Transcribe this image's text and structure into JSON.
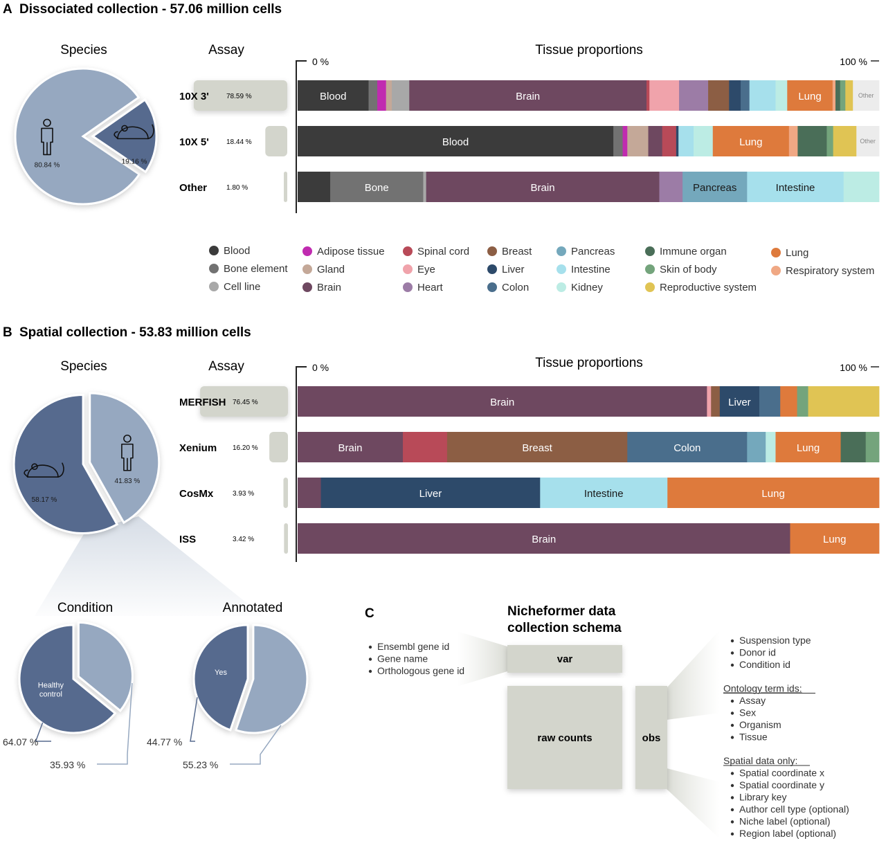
{
  "panel_a": {
    "letter": "A",
    "title": "Dissociated collection - 57.06 million cells",
    "species_header": "Species",
    "assay_header": "Assay",
    "tissue_header": "Tissue proportions",
    "axis_start": "0 %",
    "axis_end": "100 %"
  },
  "panel_b": {
    "letter": "B",
    "title": "Spatial collection - 53.83 million cells",
    "species_header": "Species",
    "assay_header": "Assay",
    "tissue_header": "Tissue proportions",
    "axis_start": "0 %",
    "axis_end": "100 %",
    "condition_header": "Condition",
    "annotated_header": "Annotated"
  },
  "colors": {
    "Blood": "#3b3b3b",
    "Bone element": "#727272",
    "Cell line": "#a8a8a8",
    "Adipose tissue": "#c02bb0",
    "Gland": "#c4a898",
    "Brain": "#6e4860",
    "Spinal cord": "#b84a58",
    "Eye": "#f0a3ab",
    "Heart": "#9c7ca6",
    "Breast": "#8c5e44",
    "Liver": "#2d4a6a",
    "Colon": "#4a6e8c",
    "Pancreas": "#74a8bc",
    "Intestine": "#a6e0ec",
    "Kidney": "#bcece4",
    "Immune organ": "#4a6e58",
    "Skin of body": "#74a47c",
    "Reproductive system": "#e0c454",
    "Lung": "#de7a3c",
    "Respiratory system": "#f0a884",
    "Other": "#ececec",
    "human": "#96a8c0",
    "mouse": "#566a8e"
  },
  "legend": [
    "Blood",
    "Bone element",
    "Cell line",
    "Adipose tissue",
    "Gland",
    "Brain",
    "Spinal cord",
    "Eye",
    "Heart",
    "Breast",
    "Liver",
    "Colon",
    "Pancreas",
    "Intestine",
    "Kidney",
    "Immune organ",
    "Skin of body",
    "Reproductive system",
    "Lung",
    "Respiratory system"
  ],
  "chart_data": [
    {
      "id": "dissociated-species",
      "type": "pie",
      "title": "Species",
      "slices": [
        {
          "label": "80.84 %",
          "value": 80.84,
          "icon": "human-icon"
        },
        {
          "label": "19.16 %",
          "value": 19.16,
          "icon": "mouse-icon"
        }
      ]
    },
    {
      "id": "dissociated-tissue",
      "type": "bar",
      "stacked": "100%",
      "title": "Tissue proportions",
      "rows": [
        {
          "assay": "10X 3'",
          "share": "78.59 %",
          "share_value": 78.59,
          "segments": [
            {
              "tissue": "Blood",
              "value": 12.2,
              "label": "Blood"
            },
            {
              "tissue": "Bone element",
              "value": 1.5
            },
            {
              "tissue": "Adipose tissue",
              "value": 1.5
            },
            {
              "tissue": "Gland",
              "value": 1.0
            },
            {
              "tissue": "Cell line",
              "value": 3.0
            },
            {
              "tissue": "Brain",
              "value": 40.8,
              "label": "Brain"
            },
            {
              "tissue": "Spinal cord",
              "value": 0.5
            },
            {
              "tissue": "Eye",
              "value": 5.1
            },
            {
              "tissue": "Heart",
              "value": 5.0
            },
            {
              "tissue": "Breast",
              "value": 3.6
            },
            {
              "tissue": "Liver",
              "value": 2.0
            },
            {
              "tissue": "Colon",
              "value": 1.5
            },
            {
              "tissue": "Intestine",
              "value": 4.5
            },
            {
              "tissue": "Kidney",
              "value": 2.0
            },
            {
              "tissue": "Lung",
              "value": 7.8,
              "label": "Lung"
            },
            {
              "tissue": "Respiratory system",
              "value": 0.5
            },
            {
              "tissue": "Immune organ",
              "value": 0.8
            },
            {
              "tissue": "Skin of body",
              "value": 0.9
            },
            {
              "tissue": "Reproductive system",
              "value": 1.3
            },
            {
              "tissue": "Other",
              "value": 4.5,
              "label": "Other"
            }
          ]
        },
        {
          "assay": "10X 5'",
          "share": "18.44 %",
          "share_value": 18.44,
          "segments": [
            {
              "tissue": "Blood",
              "value": 54.3,
              "label": "Blood"
            },
            {
              "tissue": "Bone element",
              "value": 1.6
            },
            {
              "tissue": "Adipose tissue",
              "value": 0.8
            },
            {
              "tissue": "Gland",
              "value": 3.6
            },
            {
              "tissue": "Brain",
              "value": 2.4
            },
            {
              "tissue": "Spinal cord",
              "value": 2.4
            },
            {
              "tissue": "Liver",
              "value": 0.4
            },
            {
              "tissue": "Intestine",
              "value": 2.6
            },
            {
              "tissue": "Kidney",
              "value": 3.3
            },
            {
              "tissue": "Lung",
              "value": 13.1,
              "label": "Lung"
            },
            {
              "tissue": "Respiratory system",
              "value": 1.5
            },
            {
              "tissue": "Immune organ",
              "value": 5.0
            },
            {
              "tissue": "Skin of body",
              "value": 1.1
            },
            {
              "tissue": "Reproductive system",
              "value": 4.0
            },
            {
              "tissue": "Other",
              "value": 3.9,
              "label": "Other"
            }
          ]
        },
        {
          "assay": "Other",
          "share": "1.80 %",
          "share_value": 1.8,
          "segments": [
            {
              "tissue": "Blood",
              "value": 5.6
            },
            {
              "tissue": "Bone element",
              "value": 16.0,
              "label": "Bone"
            },
            {
              "tissue": "Cell line",
              "value": 0.5
            },
            {
              "tissue": "Brain",
              "value": 40.1,
              "label": "Brain"
            },
            {
              "tissue": "Heart",
              "value": 4.0
            },
            {
              "tissue": "Pancreas",
              "value": 11.1,
              "label": "Pancreas"
            },
            {
              "tissue": "Intestine",
              "value": 16.6,
              "label": "Intestine"
            },
            {
              "tissue": "Kidney",
              "value": 6.1
            }
          ]
        }
      ]
    },
    {
      "id": "spatial-species",
      "type": "pie",
      "title": "Species",
      "slices": [
        {
          "label": "41.83 %",
          "value": 41.83,
          "icon": "human-icon"
        },
        {
          "label": "58.17 %",
          "value": 58.17,
          "icon": "mouse-icon"
        }
      ]
    },
    {
      "id": "spatial-tissue",
      "type": "bar",
      "stacked": "100%",
      "title": "Tissue proportions",
      "rows": [
        {
          "assay": "MERFISH",
          "share": "76.45 %",
          "share_value": 76.45,
          "segments": [
            {
              "tissue": "Brain",
              "value": 70.4,
              "label": "Brain"
            },
            {
              "tissue": "Eye",
              "value": 0.7
            },
            {
              "tissue": "Breast",
              "value": 1.5
            },
            {
              "tissue": "Liver",
              "value": 6.8,
              "label": "Liver"
            },
            {
              "tissue": "Colon",
              "value": 3.6
            },
            {
              "tissue": "Lung",
              "value": 2.9
            },
            {
              "tissue": "Skin of body",
              "value": 1.9
            },
            {
              "tissue": "Reproductive system",
              "value": 12.2
            }
          ]
        },
        {
          "assay": "Xenium",
          "share": "16.20 %",
          "share_value": 16.2,
          "segments": [
            {
              "tissue": "Brain",
              "value": 18.1,
              "label": "Brain"
            },
            {
              "tissue": "Spinal cord",
              "value": 7.6
            },
            {
              "tissue": "Breast",
              "value": 31.0,
              "label": "Breast"
            },
            {
              "tissue": "Colon",
              "value": 20.6,
              "label": "Colon"
            },
            {
              "tissue": "Pancreas",
              "value": 3.2
            },
            {
              "tissue": "Kidney",
              "value": 1.7
            },
            {
              "tissue": "Lung",
              "value": 11.2,
              "label": "Lung"
            },
            {
              "tissue": "Immune organ",
              "value": 4.3
            },
            {
              "tissue": "Skin of body",
              "value": 2.3
            }
          ]
        },
        {
          "assay": "CosMx",
          "share": "3.93 %",
          "share_value": 3.93,
          "segments": [
            {
              "tissue": "Brain",
              "value": 4.0
            },
            {
              "tissue": "Liver",
              "value": 37.7,
              "label": "Liver"
            },
            {
              "tissue": "Intestine",
              "value": 21.9,
              "label": "Intestine"
            },
            {
              "tissue": "Lung",
              "value": 36.4,
              "label": "Lung"
            }
          ]
        },
        {
          "assay": "ISS",
          "share": "3.42 %",
          "share_value": 3.42,
          "segments": [
            {
              "tissue": "Brain",
              "value": 84.7,
              "label": "Brain"
            },
            {
              "tissue": "Lung",
              "value": 15.3,
              "label": "Lung"
            }
          ]
        }
      ]
    },
    {
      "id": "spatial-condition",
      "type": "pie",
      "title": "Condition",
      "slices": [
        {
          "label": "64.07 %",
          "value": 64.07,
          "inner_label": "Healthy control"
        },
        {
          "label": "35.93 %",
          "value": 35.93
        }
      ]
    },
    {
      "id": "spatial-annotated",
      "type": "pie",
      "title": "Annotated",
      "slices": [
        {
          "label": "44.77 %",
          "value": 44.77,
          "inner_label": "Yes"
        },
        {
          "label": "55.23 %",
          "value": 55.23
        }
      ]
    }
  ],
  "panel_c": {
    "letter": "C",
    "title_line1": "Nicheformer data",
    "title_line2": "collection schema",
    "var_label": "var",
    "raw_counts_label": "raw counts",
    "obs_label": "obs",
    "var_items": [
      "Ensembl gene id",
      "Gene name",
      "Orthologous gene id"
    ],
    "obs_items": [
      "Suspension type",
      "Donor id",
      "Condition id"
    ],
    "ontology_header": "Ontology term ids:",
    "ontology_items": [
      "Assay",
      "Sex",
      "Organism",
      "Tissue"
    ],
    "spatial_header": "Spatial data only:",
    "spatial_items": [
      "Spatial coordinate x",
      "Spatial coordinate y",
      "Library key",
      "Author cell type (optional)",
      "Niche label (optional)",
      "Region label (optional)"
    ]
  }
}
